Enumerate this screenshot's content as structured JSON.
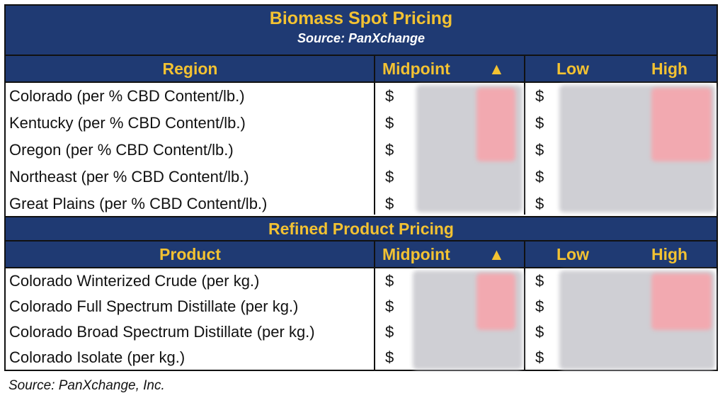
{
  "header": {
    "title": "Biomass Spot Pricing",
    "source": "Source: PanXchange"
  },
  "biomass": {
    "columns": {
      "region": "Region",
      "midpoint": "Midpoint",
      "arrow": "▲",
      "low": "Low",
      "high": "High"
    },
    "rows": [
      {
        "label": "Colorado (per % CBD Content/lb.)",
        "cur1": "$",
        "cur2": "$"
      },
      {
        "label": "Kentucky (per % CBD Content/lb.)",
        "cur1": "$",
        "cur2": "$"
      },
      {
        "label": "Oregon  (per % CBD Content/lb.)",
        "cur1": "$",
        "cur2": "$"
      },
      {
        "label": "Northeast (per % CBD Content/lb.)",
        "cur1": "$",
        "cur2": "$"
      },
      {
        "label": "Great Plains (per % CBD Content/lb.)",
        "cur1": "$",
        "cur2": "$"
      }
    ]
  },
  "refined": {
    "title": "Refined Product Pricing",
    "columns": {
      "product": "Product",
      "midpoint": "Midpoint",
      "arrow": "▲",
      "low": "Low",
      "high": "High"
    },
    "rows": [
      {
        "label": "Colorado Winterized Crude (per kg.)",
        "cur1": "$",
        "cur2": "$"
      },
      {
        "label": "Colorado Full Spectrum Distillate (per kg.)",
        "cur1": "$",
        "cur2": "$"
      },
      {
        "label": "Colorado Broad Spectrum Distillate (per kg.)",
        "cur1": "$",
        "cur2": "$"
      },
      {
        "label": "Colorado Isolate (per kg.)",
        "cur1": "$",
        "cur2": "$"
      }
    ]
  },
  "footer": "Source: PanXchange, Inc.",
  "colors": {
    "header_bg": "#1f3a73",
    "header_text": "#f3c232",
    "subtitle_text": "#ffffff"
  }
}
